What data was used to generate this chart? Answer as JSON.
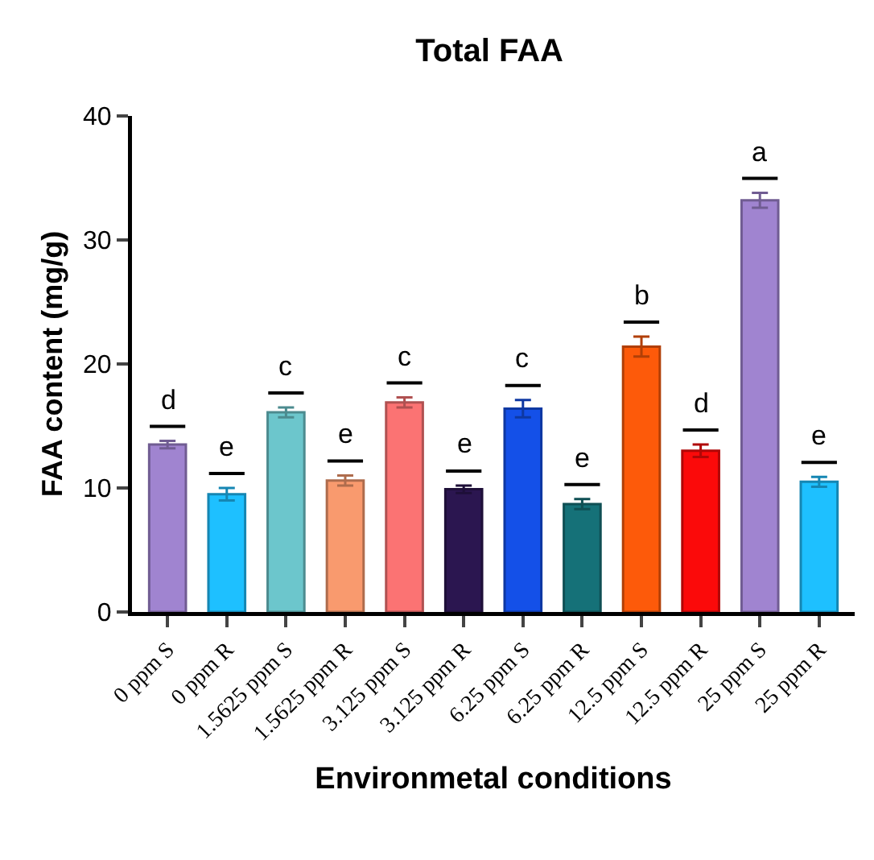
{
  "chart_data": {
    "type": "bar",
    "title": "Total FAA",
    "xlabel": "Environmetal conditions",
    "ylabel": "FAA content (mg/g)",
    "categories": [
      "0 ppm S",
      "0 ppm R",
      "1.5625 ppm S",
      "1.5625 ppm R",
      "3.125 ppm S",
      "3.125 ppm R",
      "6.25 ppm S",
      "6.25 ppm R",
      "12.5 ppm S",
      "12.5 ppm R",
      "25 ppm S",
      "25 ppm R"
    ],
    "values": [
      13.5,
      9.5,
      16.1,
      10.6,
      16.9,
      9.9,
      16.4,
      8.7,
      21.4,
      13.0,
      33.2,
      10.5
    ],
    "errors": [
      0.3,
      0.5,
      0.4,
      0.4,
      0.4,
      0.3,
      0.7,
      0.4,
      0.8,
      0.5,
      0.6,
      0.4
    ],
    "colors": [
      "#a084d0",
      "#1ec0ff",
      "#6cc6cc",
      "#f99a6e",
      "#fb7373",
      "#2b1650",
      "#1450e8",
      "#157178",
      "#fd5a0a",
      "#fb0a0a",
      "#a084d0",
      "#1ec0ff"
    ],
    "ylim": [
      0,
      40
    ],
    "yticks": [
      0,
      10,
      20,
      30,
      40
    ],
    "grid": false,
    "annotations": [
      "d",
      "e",
      "c",
      "e",
      "c",
      "e",
      "c",
      "e",
      "b",
      "d",
      "a",
      "e"
    ]
  }
}
